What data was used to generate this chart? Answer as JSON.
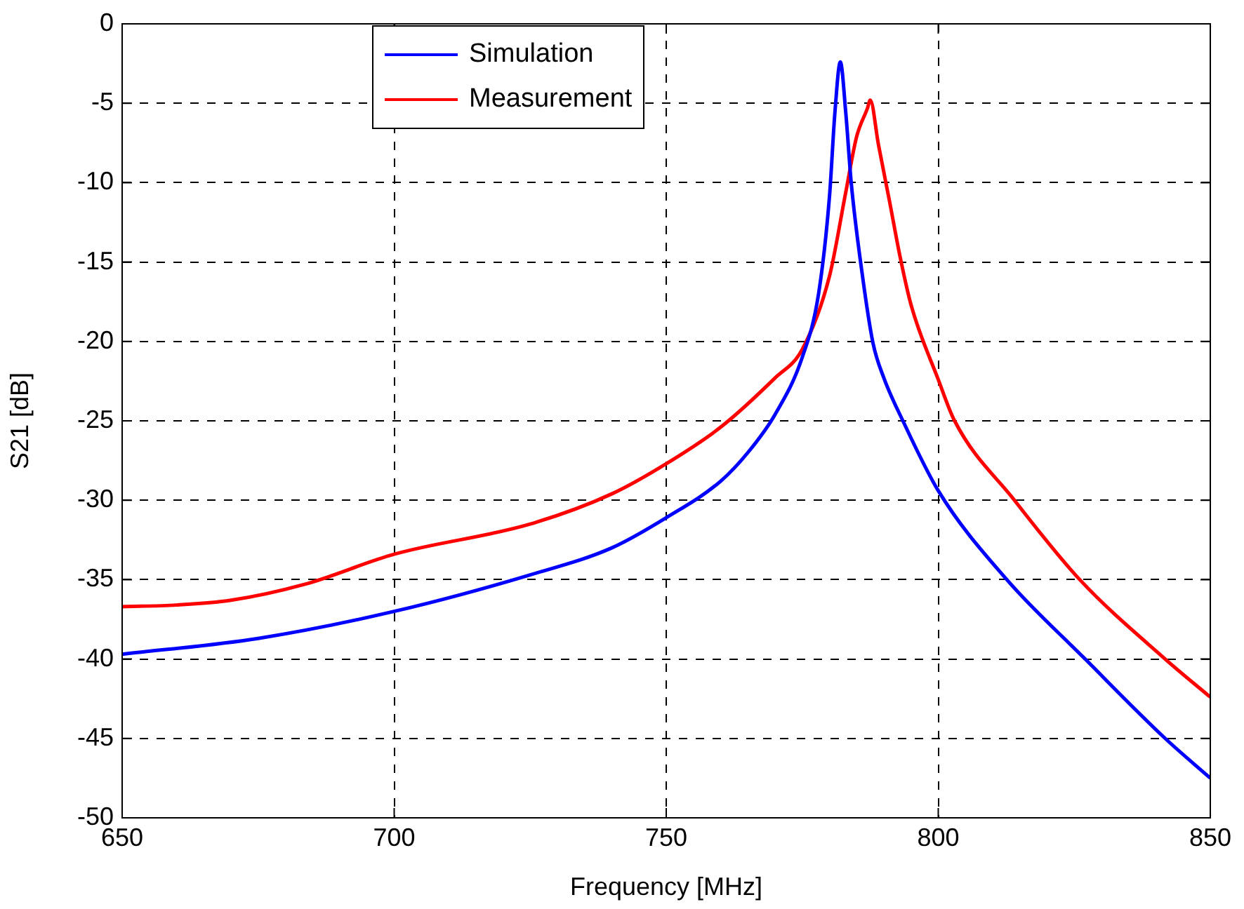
{
  "chart_data": {
    "type": "line",
    "xlabel": "Frequency [MHz]",
    "ylabel": "S21 [dB]",
    "xlim": [
      650,
      850
    ],
    "xticks": [
      650,
      700,
      750,
      800,
      850
    ],
    "ylim": [
      -50,
      0
    ],
    "yticks": [
      -50,
      -45,
      -40,
      -35,
      -30,
      -25,
      -20,
      -15,
      -10,
      -5,
      0
    ],
    "grid": true,
    "legend": "top",
    "marker": "none",
    "line_style": "solid",
    "series": [
      {
        "name": "Simulation",
        "color": "#0000ff",
        "x": [
          650,
          675,
          700,
          725,
          740,
          750,
          760,
          765,
          770,
          775,
          778,
          780,
          781,
          782,
          783,
          784,
          786,
          788,
          790,
          793.5,
          800,
          812.6,
          827,
          841.7,
          850
        ],
        "values": [
          -39.7,
          -38.7,
          -37.0,
          -34.7,
          -33.0,
          -31.1,
          -28.8,
          -27.0,
          -24.6,
          -21.0,
          -17.0,
          -10.9,
          -5.6,
          -2.4,
          -5.6,
          -10.0,
          -15.7,
          -20.1,
          -22.3,
          -25.0,
          -29.4,
          -35.0,
          -40.0,
          -45.0,
          -47.5
        ]
      },
      {
        "name": "Measurement",
        "color": "#ff0000",
        "x": [
          650,
          660,
          670,
          683.5,
          700,
          725,
          740,
          750,
          760,
          770,
          775,
          780,
          783,
          785,
          787,
          787.5,
          789,
          791,
          793,
          795,
          800,
          803,
          814,
          826,
          841.7,
          850
        ],
        "values": [
          -36.7,
          -36.6,
          -36.3,
          -35.3,
          -33.4,
          -31.5,
          -29.6,
          -27.7,
          -25.4,
          -22.3,
          -20.5,
          -15.9,
          -10.6,
          -7.1,
          -5.3,
          -4.8,
          -7.6,
          -11.1,
          -14.7,
          -17.7,
          -22.4,
          -25.0,
          -30.0,
          -35.0,
          -40.0,
          -42.4
        ]
      }
    ]
  }
}
